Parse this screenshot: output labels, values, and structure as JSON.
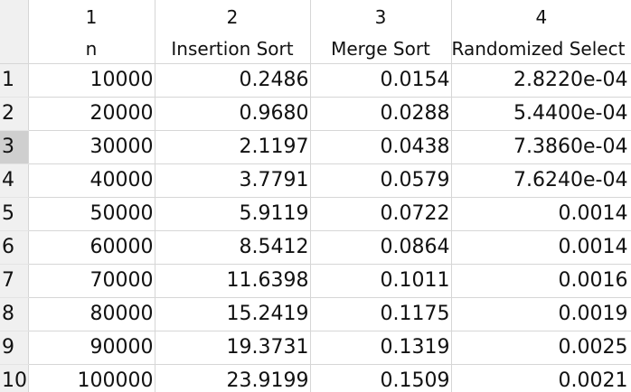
{
  "columns": {
    "numbers": [
      "1",
      "2",
      "3",
      "4"
    ],
    "names": [
      "n",
      "Insertion Sort",
      "Merge Sort",
      "Randomized Select"
    ]
  },
  "rows": [
    {
      "index": "1",
      "cells": [
        "10000",
        "0.2486",
        "0.0154",
        "2.8220e-04"
      ]
    },
    {
      "index": "2",
      "cells": [
        "20000",
        "0.9680",
        "0.0288",
        "5.4400e-04"
      ]
    },
    {
      "index": "3",
      "cells": [
        "30000",
        "2.1197",
        "0.0438",
        "7.3860e-04"
      ]
    },
    {
      "index": "4",
      "cells": [
        "40000",
        "3.7791",
        "0.0579",
        "7.6240e-04"
      ]
    },
    {
      "index": "5",
      "cells": [
        "50000",
        "5.9119",
        "0.0722",
        "0.0014"
      ]
    },
    {
      "index": "6",
      "cells": [
        "60000",
        "8.5412",
        "0.0864",
        "0.0014"
      ]
    },
    {
      "index": "7",
      "cells": [
        "70000",
        "11.6398",
        "0.1011",
        "0.0016"
      ]
    },
    {
      "index": "8",
      "cells": [
        "80000",
        "15.2419",
        "0.1175",
        "0.0019"
      ]
    },
    {
      "index": "9",
      "cells": [
        "90000",
        "19.3731",
        "0.1319",
        "0.0025"
      ]
    },
    {
      "index": "10",
      "cells": [
        "100000",
        "23.9199",
        "0.1509",
        "0.0021"
      ]
    }
  ],
  "selected_row": "3",
  "colors": {
    "header_bg": "#f0f0f0",
    "selected_row_header": "#cfcfcf",
    "grid_line": "#d6d6d6"
  }
}
